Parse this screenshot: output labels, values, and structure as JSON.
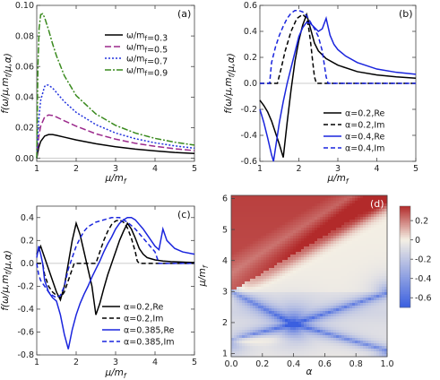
{
  "chart_data": [
    {
      "panel_label": "(a)",
      "type": "line",
      "xlabel": "μ/m_f",
      "ylabel": "f(ω/μ,m_f/μ,α)",
      "xlim": [
        1,
        5
      ],
      "ylim": [
        -0.002,
        0.1
      ],
      "x_ticks": [
        1,
        2,
        3,
        4,
        5
      ],
      "y_ticks": [
        0.0,
        0.02,
        0.04,
        0.06,
        0.08,
        0.1
      ],
      "y_tick_labels": [
        "0.00",
        "0.02",
        "0.04",
        "0.06",
        "0.08",
        "0.10"
      ],
      "legend_position": "top-right",
      "series": [
        {
          "name": "ω/m_f=0.3",
          "color": "#000000",
          "dash": "",
          "x": [
            1.0,
            1.05,
            1.1,
            1.2,
            1.3,
            1.4,
            1.5,
            1.7,
            2.0,
            2.5,
            3.0,
            3.5,
            4.0,
            4.5,
            5.0
          ],
          "y": [
            0.0,
            0.007,
            0.011,
            0.0145,
            0.0155,
            0.0155,
            0.015,
            0.0138,
            0.012,
            0.0095,
            0.0075,
            0.006,
            0.0048,
            0.0038,
            0.0031
          ]
        },
        {
          "name": "ω/m_f=0.5",
          "color": "#9b2a8c",
          "dash": "7,3",
          "x": [
            1.0,
            1.05,
            1.1,
            1.2,
            1.3,
            1.4,
            1.5,
            1.7,
            2.0,
            2.5,
            3.0,
            3.5,
            4.0,
            4.5,
            5.0
          ],
          "y": [
            0.0,
            0.014,
            0.021,
            0.027,
            0.0283,
            0.028,
            0.027,
            0.0245,
            0.021,
            0.016,
            0.0125,
            0.0098,
            0.0078,
            0.0062,
            0.005
          ]
        },
        {
          "name": "ω/m_f=0.7",
          "color": "#2233dd",
          "dash": "2,2",
          "x": [
            1.0,
            1.05,
            1.1,
            1.2,
            1.25,
            1.3,
            1.4,
            1.5,
            1.7,
            2.0,
            2.5,
            3.0,
            3.5,
            4.0,
            4.5,
            5.0
          ],
          "y": [
            0.0,
            0.025,
            0.038,
            0.047,
            0.048,
            0.0478,
            0.046,
            0.043,
            0.037,
            0.03,
            0.022,
            0.0165,
            0.0128,
            0.0101,
            0.0081,
            0.0066
          ]
        },
        {
          "name": "ω/m_f=0.9",
          "color": "#3a8a1e",
          "dash": "7,2,2,2",
          "x": [
            1.0,
            1.03,
            1.06,
            1.1,
            1.15,
            1.2,
            1.3,
            1.4,
            1.5,
            1.7,
            2.0,
            2.5,
            3.0,
            3.5,
            4.0,
            4.5,
            5.0
          ],
          "y": [
            0.0,
            0.06,
            0.085,
            0.094,
            0.0945,
            0.092,
            0.084,
            0.075,
            0.067,
            0.054,
            0.041,
            0.029,
            0.0215,
            0.0165,
            0.013,
            0.0105,
            0.0086
          ]
        }
      ]
    },
    {
      "panel_label": "(b)",
      "type": "line",
      "xlabel": "μ/m_f",
      "ylabel": "f(ω/μ,m_f/μ,α)",
      "xlim": [
        1,
        5
      ],
      "ylim": [
        -0.6,
        0.6
      ],
      "x_ticks": [
        1,
        2,
        3,
        4,
        5
      ],
      "y_ticks": [
        -0.6,
        -0.4,
        -0.2,
        0.0,
        0.2,
        0.4,
        0.6
      ],
      "y_tick_labels": [
        "-0.6",
        "-0.4",
        "-0.2",
        "0.0",
        "0.2",
        "0.4",
        "0.6"
      ],
      "legend_position": "bottom-right",
      "series": [
        {
          "name": "α=0.2,Re",
          "color": "#000000",
          "dash": "",
          "x": [
            1.0,
            1.1,
            1.2,
            1.3,
            1.4,
            1.5,
            1.6,
            1.7,
            1.8,
            1.9,
            2.0,
            2.1,
            2.2,
            2.3,
            2.4,
            2.5,
            2.7,
            3.0,
            3.5,
            4.0,
            4.5,
            5.0
          ],
          "y": [
            -0.13,
            -0.17,
            -0.22,
            -0.29,
            -0.38,
            -0.47,
            -0.57,
            -0.3,
            -0.05,
            0.17,
            0.33,
            0.45,
            0.53,
            0.42,
            0.31,
            0.25,
            0.19,
            0.14,
            0.09,
            0.065,
            0.05,
            0.04
          ]
        },
        {
          "name": "α=0.2,Im",
          "color": "#000000",
          "dash": "5,3",
          "x": [
            1.0,
            1.4,
            1.45,
            1.55,
            1.65,
            1.8,
            1.95,
            2.1,
            2.2,
            2.25,
            2.3,
            2.35,
            2.4,
            2.45,
            5.0
          ],
          "y": [
            0.0,
            0.0,
            0.0,
            0.12,
            0.25,
            0.4,
            0.5,
            0.53,
            0.5,
            0.43,
            0.32,
            0.18,
            0.05,
            0.0,
            0.0
          ]
        },
        {
          "name": "α=0.4,Re",
          "color": "#1a25dd",
          "dash": "",
          "x": [
            1.0,
            1.1,
            1.2,
            1.3,
            1.35,
            1.4,
            1.5,
            1.6,
            1.7,
            1.8,
            1.9,
            2.0,
            2.1,
            2.2,
            2.3,
            2.4,
            2.5,
            2.6,
            2.7,
            2.8,
            2.9,
            3.0,
            3.2,
            3.5,
            4.0,
            4.5,
            5.0
          ],
          "y": [
            -0.2,
            -0.3,
            -0.42,
            -0.55,
            -0.6,
            -0.5,
            -0.3,
            -0.14,
            0.0,
            0.12,
            0.24,
            0.36,
            0.43,
            0.47,
            0.46,
            0.43,
            0.4,
            0.42,
            0.5,
            0.37,
            0.3,
            0.26,
            0.21,
            0.16,
            0.11,
            0.085,
            0.07
          ]
        },
        {
          "name": "α=0.4,Im",
          "color": "#1a25dd",
          "dash": "5,3",
          "x": [
            1.0,
            1.22,
            1.25,
            1.3,
            1.4,
            1.5,
            1.6,
            1.7,
            1.8,
            1.9,
            2.0,
            2.1,
            2.2,
            2.3,
            2.4,
            2.5,
            2.6,
            2.65,
            2.7,
            2.75,
            5.0
          ],
          "y": [
            0.0,
            0.0,
            0.0,
            0.16,
            0.28,
            0.37,
            0.44,
            0.5,
            0.54,
            0.56,
            0.56,
            0.55,
            0.52,
            0.47,
            0.42,
            0.36,
            0.25,
            0.15,
            0.05,
            0.0,
            0.0
          ]
        }
      ]
    },
    {
      "panel_label": "(c)",
      "type": "line",
      "xlabel": "μ/m_f",
      "ylabel": "f(ω/μ,m_f/μ,α)",
      "xlim": [
        1,
        5
      ],
      "ylim": [
        -0.8,
        0.5
      ],
      "x_ticks": [
        1,
        2,
        3,
        4,
        5
      ],
      "y_ticks": [
        -0.8,
        -0.6,
        -0.4,
        -0.2,
        0.0,
        0.2,
        0.4
      ],
      "y_tick_labels": [
        "-0.8",
        "-0.6",
        "-0.4",
        "-0.2",
        "0.0",
        "0.2",
        "0.4"
      ],
      "legend_position": "bottom-right",
      "series": [
        {
          "name": "α=0.2,Re",
          "color": "#000000",
          "dash": "",
          "x": [
            1.0,
            1.1,
            1.2,
            1.3,
            1.4,
            1.5,
            1.6,
            1.7,
            1.8,
            1.9,
            2.0,
            2.1,
            2.2,
            2.3,
            2.4,
            2.5,
            2.6,
            2.7,
            2.8,
            2.9,
            3.0,
            3.1,
            3.2,
            3.3,
            3.4,
            3.5,
            3.6,
            3.7,
            3.8,
            3.9,
            4.0,
            4.1,
            4.2,
            4.4,
            4.6,
            4.8,
            5.0
          ],
          "y": [
            0.08,
            0.15,
            0.05,
            -0.05,
            -0.15,
            -0.25,
            -0.32,
            -0.2,
            0.0,
            0.2,
            0.35,
            0.25,
            0.1,
            -0.05,
            -0.2,
            -0.45,
            -0.35,
            -0.22,
            -0.1,
            0.0,
            0.1,
            0.2,
            0.28,
            0.35,
            0.3,
            0.22,
            0.13,
            0.08,
            0.05,
            0.04,
            0.03,
            0.025,
            0.02,
            0.015,
            0.012,
            0.01,
            0.008
          ]
        },
        {
          "name": "α=0.2,Im",
          "color": "#000000",
          "dash": "5,3",
          "x": [
            1.0,
            1.15,
            1.2,
            1.3,
            1.4,
            1.5,
            1.6,
            1.7,
            1.8,
            1.9,
            1.95,
            2.0,
            2.5,
            2.6,
            2.7,
            2.8,
            2.9,
            3.0,
            3.1,
            3.2,
            3.3,
            3.4,
            3.5,
            3.55,
            3.6,
            5.0
          ],
          "y": [
            0.0,
            0.0,
            -0.1,
            -0.2,
            -0.25,
            -0.28,
            -0.3,
            -0.25,
            -0.15,
            -0.05,
            0.0,
            0.0,
            0.0,
            0.1,
            0.2,
            0.28,
            0.34,
            0.37,
            0.38,
            0.36,
            0.31,
            0.22,
            0.1,
            0.02,
            0.0,
            0.0
          ]
        },
        {
          "name": "α=0.385,Re",
          "color": "#1a25dd",
          "dash": "",
          "x": [
            1.0,
            1.05,
            1.1,
            1.15,
            1.2,
            1.3,
            1.4,
            1.5,
            1.6,
            1.7,
            1.8,
            1.9,
            2.0,
            2.1,
            2.2,
            2.3,
            2.4,
            2.5,
            2.6,
            2.7,
            2.8,
            2.9,
            3.0,
            3.1,
            3.2,
            3.3,
            3.4,
            3.5,
            3.6,
            3.7,
            3.8,
            3.9,
            4.0,
            4.1,
            4.2,
            4.3,
            4.5,
            4.7,
            5.0
          ],
          "y": [
            0.05,
            0.15,
            0.08,
            0.0,
            -0.15,
            -0.25,
            -0.3,
            -0.33,
            -0.45,
            -0.62,
            -0.75,
            -0.58,
            -0.45,
            -0.35,
            -0.27,
            -0.2,
            -0.12,
            -0.05,
            0.02,
            0.1,
            0.17,
            0.23,
            0.3,
            0.35,
            0.38,
            0.4,
            0.4,
            0.38,
            0.34,
            0.3,
            0.25,
            0.2,
            0.15,
            0.12,
            0.3,
            0.2,
            0.13,
            0.1,
            0.08
          ]
        },
        {
          "name": "α=0.385,Im",
          "color": "#1a25dd",
          "dash": "5,3",
          "x": [
            1.0,
            1.05,
            1.1,
            1.2,
            1.3,
            1.4,
            1.5,
            1.6,
            1.7,
            1.8,
            1.9,
            2.0,
            2.1,
            2.2,
            2.3,
            2.5,
            2.7,
            2.9,
            3.0,
            3.1,
            3.2,
            3.3,
            3.4,
            3.5,
            3.6,
            3.7,
            3.8,
            3.9,
            4.0,
            4.05,
            4.1,
            5.0
          ],
          "y": [
            0.0,
            -0.1,
            -0.15,
            -0.2,
            -0.25,
            -0.28,
            -0.3,
            -0.28,
            -0.2,
            -0.05,
            0.05,
            0.15,
            0.22,
            0.28,
            0.32,
            0.36,
            0.38,
            0.4,
            0.4,
            0.4,
            0.38,
            0.36,
            0.33,
            0.3,
            0.26,
            0.22,
            0.18,
            0.14,
            0.1,
            0.05,
            0.0,
            0.0
          ]
        }
      ]
    },
    {
      "panel_label": "(d)",
      "type": "heatmap",
      "xlabel": "α",
      "ylabel": "μ/m_f",
      "xlim": [
        0,
        1
      ],
      "ylim": [
        0.9,
        6.1
      ],
      "x_ticks": [
        0,
        0.2,
        0.4,
        0.6,
        0.8,
        1.0
      ],
      "x_tick_labels": [
        "0.0",
        "0.2",
        "0.4",
        "0.6",
        "0.8",
        "1.0"
      ],
      "y_ticks": [
        1,
        2,
        3,
        4,
        5,
        6
      ],
      "colorbar_range": [
        -0.7,
        0.35
      ],
      "colorbar_ticks": [
        0.2,
        0.0,
        -0.2,
        -0.4,
        -0.6
      ],
      "colorbar_tick_labels": [
        "0.2",
        "0",
        "-0.2",
        "-0.4",
        "-0.6"
      ],
      "colorbar_position": "right",
      "colors": {
        "low": "#3a5fe0",
        "mid": "#f4efe4",
        "high": "#b22a2a"
      },
      "features": {
        "upper_red_line": {
          "from": [
            0.0,
            3.0
          ],
          "to": [
            1.0,
            6.0
          ]
        },
        "blue_X_center": [
          0.4,
          1.95
        ],
        "lines": [
          {
            "from": [
              0.0,
              3.0
            ],
            "to": [
              0.4,
              1.95
            ]
          },
          {
            "from": [
              0.0,
              1.45
            ],
            "to": [
              0.4,
              1.95
            ]
          },
          {
            "from": [
              0.4,
              1.95
            ],
            "to": [
              1.0,
              2.95
            ]
          },
          {
            "from": [
              0.4,
              1.95
            ],
            "to": [
              1.0,
              1.1
            ]
          }
        ]
      }
    }
  ]
}
